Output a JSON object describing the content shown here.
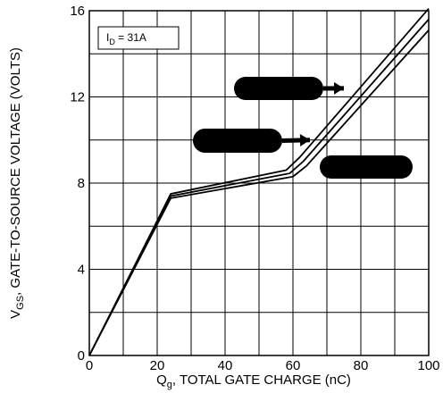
{
  "chart_data": {
    "type": "line",
    "title": "",
    "xlabel": {
      "main": "Q",
      "sub": "g",
      "rest": ", TOTAL GATE CHARGE (nC)"
    },
    "ylabel": {
      "main": "V",
      "sub": "GS",
      "rest": ", GATE-TO-SOURCE VOLTAGE (VOLTS)"
    },
    "xlim": [
      0,
      100
    ],
    "ylim": [
      0,
      16
    ],
    "x_ticks": [
      0,
      20,
      40,
      60,
      80,
      100
    ],
    "y_ticks": [
      0,
      4,
      8,
      12,
      16
    ],
    "grid": true,
    "annotation": {
      "main": "I",
      "sub": "D",
      "rest": " = 31A"
    },
    "series": [
      {
        "x": [
          0,
          24,
          58,
          62,
          100
        ],
        "y": [
          0,
          7.5,
          8.6,
          9.2,
          16.1
        ]
      },
      {
        "x": [
          0,
          24,
          59,
          63,
          100
        ],
        "y": [
          0,
          7.4,
          8.45,
          9.0,
          15.6
        ]
      },
      {
        "x": [
          0,
          24,
          60,
          64,
          100
        ],
        "y": [
          0,
          7.3,
          8.3,
          8.8,
          15.1
        ]
      }
    ],
    "callouts": [
      {
        "label": "",
        "target": [
          75,
          12.4
        ]
      },
      {
        "label": "",
        "target": [
          65,
          10.0
        ]
      },
      {
        "label": "",
        "target": [
          80,
          8.6
        ]
      }
    ]
  }
}
